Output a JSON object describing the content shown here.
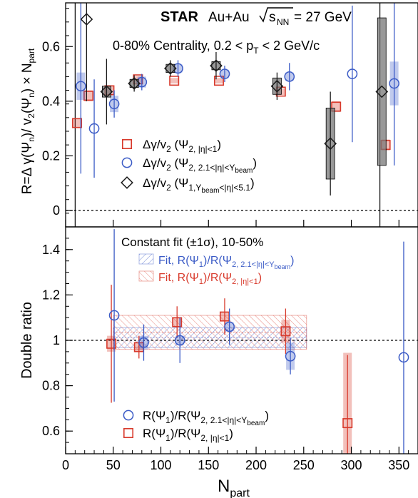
{
  "colors": {
    "red": "#d83a2c",
    "blue": "#3b5bc6",
    "black": "#1a1a1a",
    "grey": "#555555"
  },
  "chart_data": [
    {
      "type": "scatter",
      "panel": "top",
      "header": {
        "experiment": "STAR",
        "system": "Au+Au",
        "energy_eq": "= 27 GeV",
        "energy_sub": "NN",
        "centrality": "0-80% Centrality, 0.2 < p",
        "centrality_tail": " < 2 GeV/c"
      },
      "ylabel": "R=Δ γ(Ψ_n)/ v_2(Ψ_n) × N_part",
      "xlim": [
        0,
        370
      ],
      "ylim": [
        -0.06,
        0.76
      ],
      "yticks": [
        0,
        0.2,
        0.4,
        0.6
      ],
      "ytick_labels": [
        "0",
        "0.2",
        "0.4",
        "0.6"
      ],
      "reference_line": 0,
      "vlines": [
        10,
        330
      ],
      "legend": [
        {
          "series": 0,
          "main": "Δγ/v",
          "sub": "2",
          "paren": " (Ψ",
          "sub2": "2, |η|<1",
          "close": ")"
        },
        {
          "series": 1,
          "main": "Δγ/v",
          "sub": "2",
          "paren": " (Ψ",
          "sub2": "2, 2.1<|η|<Y",
          "sub3": "beam",
          "close": ")"
        },
        {
          "series": 2,
          "main": "Δγ/v",
          "sub": "2",
          "paren": " (Ψ",
          "sub2": "1,Y",
          "sub3": "beam",
          "sub4": "<|η|<5.1",
          "close": ")"
        }
      ],
      "series": [
        {
          "name": "Δγ/v2 (Ψ2, |η|<1)",
          "marker": "square",
          "color": "red",
          "points": [
            {
              "x": 12,
              "y": 0.32,
              "err": 0.0,
              "sys": 0.018
            },
            {
              "x": 24,
              "y": 0.42,
              "err": 0.0,
              "sys": 0.02
            },
            {
              "x": 46,
              "y": 0.44,
              "err": 0.0,
              "sys": 0.015
            },
            {
              "x": 76,
              "y": 0.48,
              "err": 0.0,
              "sys": 0.012
            },
            {
              "x": 114,
              "y": 0.475,
              "err": 0.0,
              "sys": 0.01
            },
            {
              "x": 161,
              "y": 0.475,
              "err": 0.0,
              "sys": 0.01
            },
            {
              "x": 226,
              "y": 0.435,
              "err": 0.0,
              "sys": 0.012
            },
            {
              "x": 284,
              "y": 0.38,
              "err": 0.0,
              "sys": 0.02
            },
            {
              "x": 336,
              "y": 0.24,
              "err": 0.0,
              "sys": 0.02
            }
          ]
        },
        {
          "name": "Δγ/v2 (Ψ2, 2.1<|η|<Ybeam)",
          "marker": "circle",
          "color": "blue",
          "points": [
            {
              "x": 16,
              "y": 0.455,
              "err": 0.32,
              "sys": 0.05
            },
            {
              "x": 30,
              "y": 0.3,
              "err": 0.18,
              "sys": 0.0
            },
            {
              "x": 51,
              "y": 0.39,
              "err": 0.05,
              "sys": 0.03
            },
            {
              "x": 80,
              "y": 0.47,
              "err": 0.03,
              "sys": 0.02
            },
            {
              "x": 118,
              "y": 0.52,
              "err": 0.03,
              "sys": 0.015
            },
            {
              "x": 167,
              "y": 0.5,
              "err": 0.03,
              "sys": 0.015
            },
            {
              "x": 235,
              "y": 0.49,
              "err": 0.05,
              "sys": 0.015
            },
            {
              "x": 301,
              "y": 0.5,
              "err": 0.25,
              "sys": 0.0
            },
            {
              "x": 345,
              "y": 0.465,
              "err": 0.3,
              "sys": 0.08
            }
          ]
        },
        {
          "name": "Δγ/v2 (Ψ1,Ybeam<|η|<5.1)",
          "marker": "diamond",
          "color": "black",
          "points": [
            {
              "x": 22,
              "y": 0.7,
              "err": 0.3,
              "sys": 0.0
            },
            {
              "x": 43,
              "y": 0.435,
              "err": 0.12,
              "sys": 0.02
            },
            {
              "x": 72,
              "y": 0.465,
              "err": 0.03,
              "sys": 0.015
            },
            {
              "x": 110,
              "y": 0.52,
              "err": 0.03,
              "sys": 0.015
            },
            {
              "x": 158,
              "y": 0.53,
              "err": 0.05,
              "sys": 0.015
            },
            {
              "x": 222,
              "y": 0.455,
              "err": 0.05,
              "sys": 0.03
            },
            {
              "x": 278,
              "y": 0.245,
              "err": 0.19,
              "sys": 0.13
            },
            {
              "x": 332,
              "y": 0.435,
              "err": 0.0,
              "sys": 0.27
            }
          ]
        }
      ]
    },
    {
      "type": "scatter",
      "panel": "bottom",
      "ylabel": "Double ratio",
      "xlabel": "N_part",
      "xlim": [
        0,
        370
      ],
      "ylim": [
        0.5,
        1.5
      ],
      "xticks": [
        0,
        50,
        100,
        150,
        200,
        250,
        300,
        350
      ],
      "xtick_labels": [
        "0",
        "50",
        "100",
        "150",
        "200",
        "250",
        "300",
        "350"
      ],
      "yticks": [
        0.6,
        0.8,
        1.0,
        1.2,
        1.4
      ],
      "ytick_labels": [
        "0.6",
        "0.8",
        "1",
        "1.2",
        "1.4"
      ],
      "reference_line": 1.0,
      "fit_title": "Constant fit (±1σ), 10-50%",
      "fits": [
        {
          "label_main": "Fit, R(Ψ",
          "label_sub": "1",
          "label_mid": ")/R(Ψ",
          "label_sub2": "2, 2.1<|η|<Y",
          "label_sub3": "beam",
          "label_close": ")",
          "color": "blue",
          "center": 1.012,
          "low": 0.968,
          "high": 1.056,
          "x_range": [
            50,
            253
          ]
        },
        {
          "label_main": "Fit, R(Ψ",
          "label_sub": "1",
          "label_mid": ")/R(Ψ",
          "label_sub2": "2, |η|<1",
          "label_close": ")",
          "color": "red",
          "center": 1.035,
          "low": 0.96,
          "high": 1.11,
          "x_range": [
            50,
            253
          ]
        }
      ],
      "legend": [
        {
          "series": 1,
          "main": "R(Ψ",
          "sub": "1",
          "mid": ")/R(Ψ",
          "sub2": "2, 2.1<|η|<Y",
          "sub3": "beam",
          "close": ")"
        },
        {
          "series": 0,
          "main": "R(Ψ",
          "sub": "1",
          "mid": ")/R(Ψ",
          "sub2": "2, |η|<1",
          "close": ")"
        }
      ],
      "series": [
        {
          "name": "R(Ψ1)/R(Ψ2, |η|<1)",
          "marker": "square",
          "color": "red",
          "points": [
            {
              "x": 48,
              "y": 0.985,
              "err": 0.26,
              "sys": 0.035
            },
            {
              "x": 77,
              "y": 0.97,
              "err": 0.05,
              "sys": 0.02
            },
            {
              "x": 117,
              "y": 1.08,
              "err": 0.07,
              "sys": 0.02
            },
            {
              "x": 167,
              "y": 1.105,
              "err": 0.08,
              "sys": 0.02
            },
            {
              "x": 231,
              "y": 1.04,
              "err": 0.1,
              "sys": 0.05
            },
            {
              "x": 296,
              "y": 0.635,
              "err": 0.3,
              "sys": 0.31
            }
          ]
        },
        {
          "name": "R(Ψ1)/R(Ψ2, 2.1<|η|<Ybeam)",
          "marker": "circle",
          "color": "blue",
          "points": [
            {
              "x": 51,
              "y": 1.11,
              "err": 0.38,
              "sys": 0.0
            },
            {
              "x": 82,
              "y": 0.99,
              "err": 0.08,
              "sys": 0.03
            },
            {
              "x": 120,
              "y": 1.0,
              "err": 0.1,
              "sys": 0.02
            },
            {
              "x": 172,
              "y": 1.06,
              "err": 0.08,
              "sys": 0.02
            },
            {
              "x": 236,
              "y": 0.93,
              "err": 0.08,
              "sys": 0.06
            },
            {
              "x": 355,
              "y": 0.925,
              "err": 0.51,
              "sys": 0.0
            }
          ]
        }
      ]
    }
  ],
  "axis_title_x": "N",
  "axis_title_x_sub": "part"
}
